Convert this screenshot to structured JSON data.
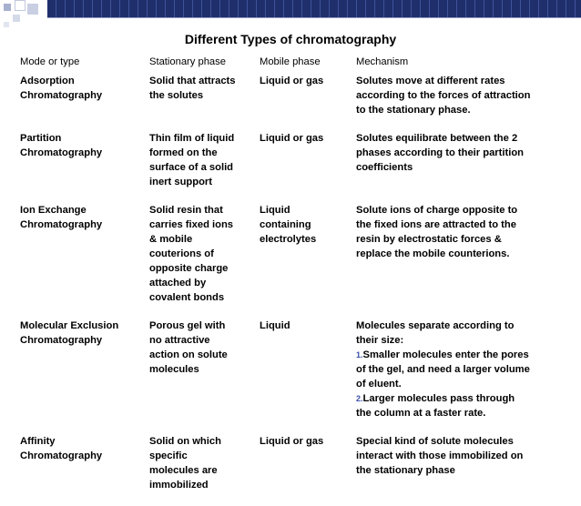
{
  "title": "Different Types of chromatography",
  "headers": [
    "Mode or type",
    "Stationary phase",
    "Mobile phase",
    "Mechanism"
  ],
  "rows": [
    {
      "mode": [
        "Adsorption",
        "Chromatography"
      ],
      "stationary": [
        "Solid that attracts",
        "the solutes"
      ],
      "mobile": [
        "Liquid or gas"
      ],
      "mechanism": [
        "Solutes move at different rates",
        "according to the forces of attraction",
        "to the stationary phase."
      ]
    },
    {
      "mode": [
        "Partition",
        "Chromatography"
      ],
      "stationary": [
        "Thin film of liquid",
        "formed on the",
        "surface of a solid",
        "inert support"
      ],
      "mobile": [
        "Liquid or gas"
      ],
      "mechanism": [
        "Solutes equilibrate between the 2",
        "phases according to their partition",
        "coefficients"
      ]
    },
    {
      "mode": [
        "Ion Exchange",
        "Chromatography"
      ],
      "stationary": [
        "Solid resin that",
        "carries fixed ions",
        "& mobile",
        "couterions of",
        "opposite charge",
        "attached by",
        "covalent bonds"
      ],
      "mobile": [
        "Liquid",
        "containing",
        "electrolytes"
      ],
      "mechanism": [
        "Solute ions of charge opposite to",
        "the fixed ions are attracted to the",
        "resin by electrostatic forces &",
        "replace the mobile counterions."
      ]
    },
    {
      "mode": [
        "Molecular Exclusion",
        "Chromatography"
      ],
      "stationary": [
        "Porous gel with",
        "no attractive",
        "action on solute",
        "molecules"
      ],
      "mobile": [
        "Liquid"
      ],
      "mechanism_intro": [
        "Molecules separate according to",
        "their size:"
      ],
      "mechanism_steps": [
        {
          "num": "1.",
          "lines": [
            "Smaller molecules enter the pores",
            "of the gel, and need a larger volume",
            "of eluent."
          ]
        },
        {
          "num": "2.",
          "lines": [
            "Larger molecules pass through",
            "the column at a faster rate."
          ]
        }
      ]
    },
    {
      "mode": [
        "Affinity",
        "Chromatography"
      ],
      "stationary": [
        "Solid on which",
        "specific",
        "molecules are",
        "immobilized"
      ],
      "mobile": [
        "Liquid or gas"
      ],
      "mechanism": [
        "Special kind of solute  molecules",
        "interact  with those immobilized on",
        "the stationary phase"
      ]
    }
  ],
  "colors": {
    "header_band": "#1f2f6b",
    "header_square": "#9aa5c8",
    "step_number": "#3a4fa8"
  }
}
